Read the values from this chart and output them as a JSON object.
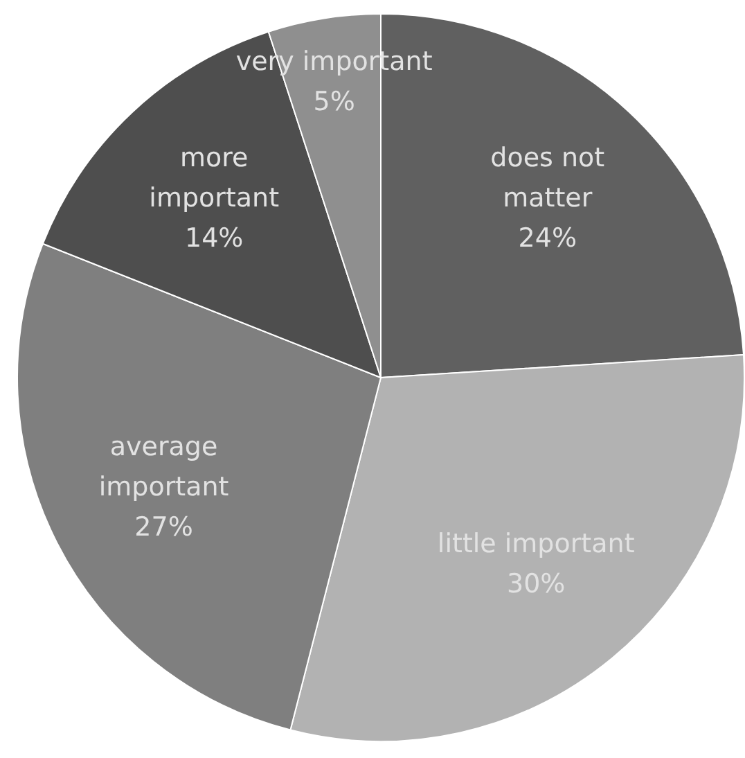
{
  "chart_data": {
    "type": "pie",
    "categories": [
      "does not matter",
      "little important",
      "average important",
      "more important",
      "very important"
    ],
    "values": [
      24,
      30,
      27,
      14,
      5
    ],
    "colors": [
      "#606060",
      "#b2b2b2",
      "#7f7f7f",
      "#4e4e4e",
      "#8f8f8f"
    ],
    "value_labels": [
      "24%",
      "30%",
      "27%",
      "14%",
      "5%"
    ]
  }
}
